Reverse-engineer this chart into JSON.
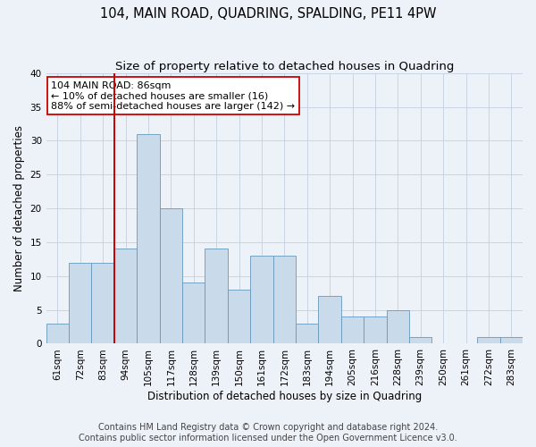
{
  "title": "104, MAIN ROAD, QUADRING, SPALDING, PE11 4PW",
  "subtitle": "Size of property relative to detached houses in Quadring",
  "xlabel": "Distribution of detached houses by size in Quadring",
  "ylabel": "Number of detached properties",
  "categories": [
    "61sqm",
    "72sqm",
    "83sqm",
    "94sqm",
    "105sqm",
    "117sqm",
    "128sqm",
    "139sqm",
    "150sqm",
    "161sqm",
    "172sqm",
    "183sqm",
    "194sqm",
    "205sqm",
    "216sqm",
    "228sqm",
    "239sqm",
    "250sqm",
    "261sqm",
    "272sqm",
    "283sqm"
  ],
  "values": [
    3,
    12,
    12,
    14,
    31,
    20,
    9,
    14,
    8,
    13,
    13,
    3,
    7,
    4,
    4,
    5,
    1,
    0,
    0,
    1,
    1
  ],
  "bar_color": "#c9daea",
  "bar_edge_color": "#6699bb",
  "grid_color": "#c5cfe0",
  "background_color": "#edf1f8",
  "vline_x_index": 2,
  "vline_color": "#cc0000",
  "annotation_text": "104 MAIN ROAD: 86sqm\n← 10% of detached houses are smaller (16)\n88% of semi-detached houses are larger (142) →",
  "annotation_box_color": "#ffffff",
  "annotation_box_edge": "#cc0000",
  "ylim": [
    0,
    40
  ],
  "yticks": [
    0,
    5,
    10,
    15,
    20,
    25,
    30,
    35,
    40
  ],
  "footer1": "Contains HM Land Registry data © Crown copyright and database right 2024.",
  "footer2": "Contains public sector information licensed under the Open Government Licence v3.0.",
  "title_fontsize": 10.5,
  "subtitle_fontsize": 9.5,
  "axis_label_fontsize": 8.5,
  "tick_fontsize": 7.5,
  "footer_fontsize": 7,
  "annotation_fontsize": 8
}
